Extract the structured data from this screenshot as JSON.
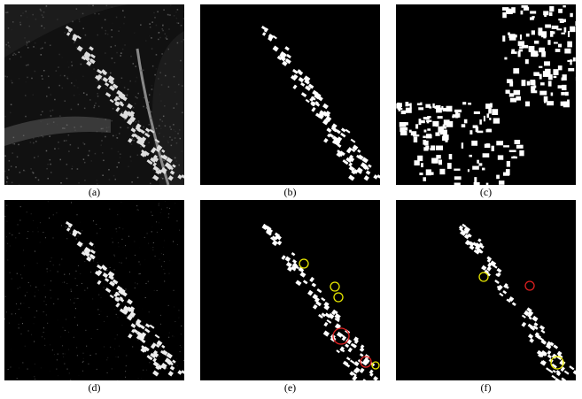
{
  "figure": {
    "panels": [
      {
        "id": "a",
        "caption": "(a)",
        "kind": "sar-image"
      },
      {
        "id": "b",
        "caption": "(b)",
        "kind": "binary-mask"
      },
      {
        "id": "c",
        "caption": "(c)",
        "kind": "binary-mask"
      },
      {
        "id": "d",
        "caption": "(d)",
        "kind": "binary-mask"
      },
      {
        "id": "e",
        "caption": "(e)",
        "kind": "binary-mask-annotated"
      },
      {
        "id": "f",
        "caption": "(f)",
        "kind": "binary-mask-annotated"
      }
    ],
    "annotation_colors": {
      "missed": "#e8e800",
      "false_alarm": "#e02020"
    }
  }
}
